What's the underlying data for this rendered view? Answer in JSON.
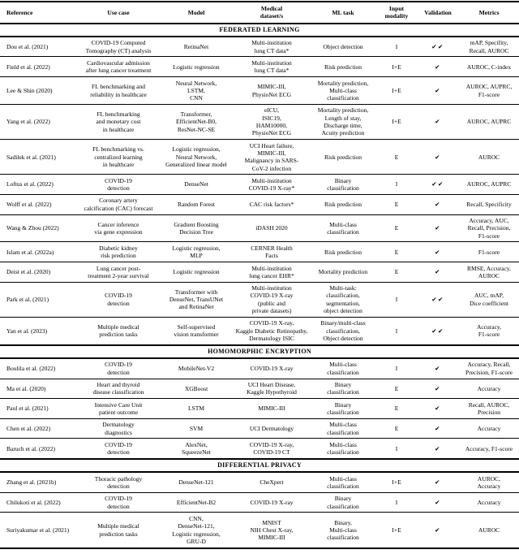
{
  "table": {
    "columns": [
      {
        "label": "Reference"
      },
      {
        "label": "Use case"
      },
      {
        "label": "Model"
      },
      {
        "label": "Medical\ndataset/s"
      },
      {
        "label": "ML task"
      },
      {
        "label": "Input\nmodality"
      },
      {
        "label": "Validation"
      },
      {
        "label": "Metrics"
      }
    ],
    "check_single": "✔",
    "check_double": "✔✔",
    "sections": [
      {
        "title": "FEDERATED LEARNING",
        "rows": [
          [
            "Dou et al. (2021)",
            "COVID-19 Computed\nTomography (CT) analysis",
            "RetinaNet",
            "Multi-institution\nlung CT data*",
            "Object detection",
            "I",
            "✔✔",
            "mAP, Specifity,\nRecall, AUROC"
          ],
          [
            "Field et al. (2022)",
            "Cardiovascular admission\nafter lung cancer treatment",
            "Logistic regression",
            "Multi-institution\nlung CT data*",
            "Risk prediction",
            "I+E",
            "✔",
            "AUROC, C-index"
          ],
          [
            "Lee & Shin (2020)",
            "FL benchmarking and\nreliability in healthcare",
            "Neural Network,\nLSTM,\nCNN",
            "MIMIC-III,\nPhysioNet ECG",
            "Mortality prediction,\nMulti-class\nclassification",
            "I+E",
            "✔",
            "AUROC, AUPRC,\nF1-score"
          ],
          [
            "Yang et al. (2022)",
            "FL benchmarking\nand monetary cost\nin healthcare",
            "Transformer,\nEfficientNet-B0,\nResNet-NC-SE",
            "eICU,\nISIC19,\nHAM10000,\nPhysioNet ECG",
            "Mortality prediction,\nLength of stay,\nDischarge time,\nAcuity prediction",
            "I+E",
            "✔",
            "AUROC, AUPRC"
          ],
          [
            "Sadilek et al. (2021)",
            "FL benchmarking vs.\ncentralized learning\nin healthcare",
            "Logistic regression,\nNeural Network,\nGeneralized linear model",
            "UCI Heart failure,\nMIMIC-III,\nMalignancy in SARS-\nCoV-2 infection",
            "Risk prediction",
            "E",
            "✔",
            "AUROC"
          ],
          [
            "Loftus et al. (2022)",
            "COVID-19\ndetection",
            "DenseNet",
            "Multi-institution\nCOVID-19 X-ray*",
            "Binary\nclassification",
            "I",
            "✔✔",
            "AUROC, AUPRC"
          ],
          [
            "Wolff et al. (2022)",
            "Coronary artery\ncalcification (CAC) forecast",
            "Random Forest",
            "CAC risk factors*",
            "Risk prediction",
            "E",
            "✔",
            "Recall, Specificity"
          ],
          [
            "Wang & Zhou (2022)",
            "Cancer inference\nvia gene expression",
            "Gradient Boosting\nDecision Tree",
            "iDASH 2020",
            "Multi-class\nclassification",
            "E",
            "✔",
            "Accuracy, AUC,\nRecall, Precision,\nF1-score"
          ],
          [
            "Islam et al. (2022a)",
            "Diabetic kidney\nrisk prediction",
            "Logistic regression,\nMLP",
            "CERNER Health\nFacts",
            "Risk prediction",
            "E",
            "✔",
            "F1-score"
          ],
          [
            "Deist et al. (2020)",
            "Lung cancer post-\ntreatment 2-year survival",
            "Logistic regression",
            "Multi-institution\nlung cancer EHR*",
            "Mortality prediction",
            "E",
            "✔",
            "RMSE, Accuracy,\nAUROC"
          ],
          [
            "Park et al. (2021)",
            "COVID-19\ndetection",
            "Transformer with\nDenseNet, TransUNet\nand RetinaNet",
            "Multi-institution\nCOVID-19 X-ray\n(public and\nprivate datasets)",
            "Multi-task:\nclassification,\nsegmentation,\nobject detection",
            "I",
            "✔✔",
            "AUC, mAP,\nDice coefficient"
          ],
          [
            "Yan et al. (2023)",
            "Multiple medical\nprediction tasks",
            "Self-supervised\nvision transformer",
            "COVID-19 X-ray,\nKaggle Diabetic Retinopathy,\nDermatology ISIC",
            "Binary/multi-class\nclassification,\nObject detection",
            "I",
            "✔✔",
            "Accuracy,\nF1-score"
          ]
        ]
      },
      {
        "title": "HOMOMORPHIC ENCRYPTION",
        "rows": [
          [
            "Boulila et al. (2022)",
            "COVID-19\ndetection",
            "MobileNet-V2",
            "COVID-19 X-ray",
            "Multi-class\nclassification",
            "I",
            "✔",
            "Accuracy, Recall,\nPrecision, F1-score"
          ],
          [
            "Ma et al. (2020)",
            "Heart and thyroid\ndisease classification",
            "XGBoost",
            "UCI Heart Disease,\nKaggle Hypothyroid",
            "Binary\nclassification",
            "E",
            "✔",
            "Accuracy"
          ],
          [
            "Paul et al. (2021)",
            "Intensive Care Unit\npatient outcome",
            "LSTM",
            "MIMIC-III",
            "Binary\nclassification",
            "E",
            "✔",
            "Recall, AUROC,\nPrecision"
          ],
          [
            "Chen et al. (2022)",
            "Dermatology\ndiagnostics",
            "SVM",
            "UCI Dermatology",
            "Multi-class\nclassification",
            "E",
            "✔",
            "Accuracy"
          ],
          [
            "Baruch et al. (2022)",
            "COVID-19\ndetection",
            "AlexNet,\nSqueezeNet",
            "COVID-19 X-ray,\nCOVID-19 CT",
            "Multi-class\nclassification",
            "I",
            "✔",
            "Accuracy, F1-score"
          ]
        ]
      },
      {
        "title": "DIFFERENTIAL PRIVACY",
        "rows": [
          [
            "Zhang et al. (2021b)",
            "Thoracic pathology\ndetection",
            "DenseNet-121",
            "CheXpert",
            "Multi-class\nclassification",
            "I+E",
            "✔",
            "AUROC,\nAccuracy"
          ],
          [
            "Chilukoti et al. (2022)",
            "COVID-19\ndetection",
            "EfficientNet-B2",
            "COVID-19 X-ray",
            "Binary\nclassification",
            "I",
            "✔",
            "Accuracy"
          ],
          [
            "Suriyakumar et al. (2021)",
            "Multiple medical\nprediction tasks",
            "CNN,\nDenseNet-121,\nLogistic regression,\nGRU-D",
            "MNIST\nNIH Chest X-ray,\nMIMIC-III",
            "Binary,\nMulti-class\nclassification",
            "I+E",
            "✔",
            "AUROC"
          ]
        ]
      }
    ]
  }
}
